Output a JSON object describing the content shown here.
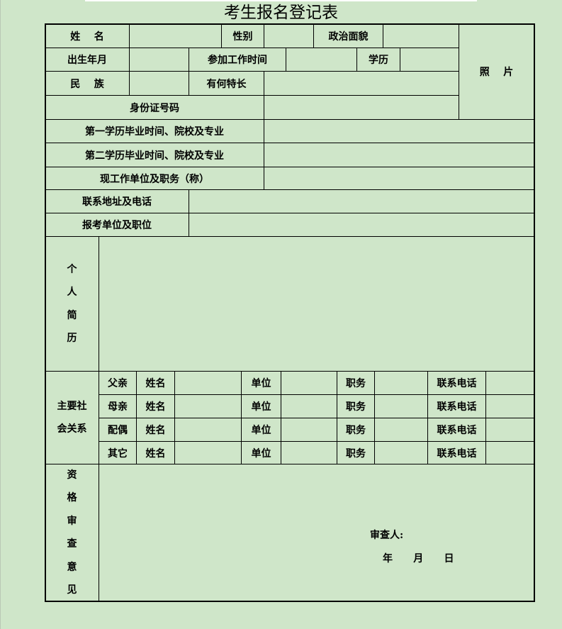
{
  "title": "考生报名登记表",
  "colors": {
    "background": "#cfe6c9",
    "border": "#000000"
  },
  "basic": {
    "name_label": "姓    名",
    "gender_label": "性别",
    "political_label": "政治面貌",
    "photo_label": "照    片",
    "birth_label": "出生年月",
    "work_start_label": "参加工作时间",
    "education_label": "学历",
    "ethnicity_label": "民    族",
    "specialty_label": "有何特长",
    "id_label": "身份证号码",
    "edu1_label": "第一学历毕业时间、院校及专业",
    "edu2_label": "第二学历毕业时间、院校及专业",
    "current_job_label": "现工作单位及职务（称）",
    "contact_label": "联系地址及电话",
    "apply_label": "报考单位及职位"
  },
  "resume": {
    "label": [
      "个",
      "人",
      "简",
      "历"
    ]
  },
  "family": {
    "label": [
      "主要社",
      "会关系"
    ],
    "rows": [
      {
        "relation": "父亲",
        "name_label": "姓名",
        "unit_label": "单位",
        "position_label": "职务",
        "phone_label": "联系电话"
      },
      {
        "relation": "母亲",
        "name_label": "姓名",
        "unit_label": "单位",
        "position_label": "职务",
        "phone_label": "联系电话"
      },
      {
        "relation": "配偶",
        "name_label": "姓名",
        "unit_label": "单位",
        "position_label": "职务",
        "phone_label": "联系电话"
      },
      {
        "relation": "其它",
        "name_label": "姓名",
        "unit_label": "单位",
        "position_label": "职务",
        "phone_label": "联系电话"
      }
    ]
  },
  "review": {
    "label": [
      "资",
      "格",
      "审",
      "查",
      "意",
      "见"
    ],
    "reviewer_label": "审查人:",
    "date_label": "年      月      日"
  }
}
